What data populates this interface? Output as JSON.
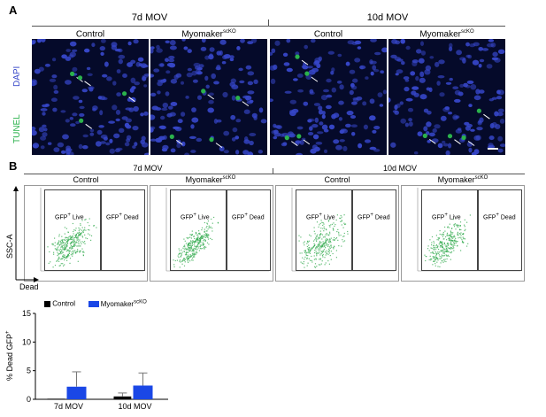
{
  "panel_a": {
    "letter": "A",
    "group_7d": "7d MOV",
    "group_10d": "10d MOV",
    "col_labels": [
      "Control",
      "Myomaker",
      "Control",
      "Myomaker"
    ],
    "col_sups": [
      "",
      "scKO",
      "",
      "scKO"
    ],
    "ylabel_tunel": "TUNEL",
    "ylabel_dapi": "DAPI",
    "colors": {
      "tunel": "#2bb24c",
      "dapi": "#3646c8",
      "background": "#050a2a"
    }
  },
  "panel_b": {
    "letter": "B",
    "group_7d": "7d MOV",
    "group_10d": "10d MOV",
    "col_labels": [
      "Control",
      "Myomaker",
      "Control",
      "Myomaker"
    ],
    "col_sups": [
      "",
      "scKO",
      "",
      "scKO"
    ],
    "gate_live": "GFP",
    "gate_live_sup": "+",
    "gate_live_suffix": " Live",
    "gate_dead": "GFP",
    "gate_dead_sup": "+",
    "gate_dead_suffix": " Dead",
    "axis_y": "SSC-A",
    "axis_x": "Dead",
    "dot_color": "#2ea84a"
  },
  "chart_data": {
    "type": "bar",
    "categories": [
      "7d MOV",
      "10d MOV"
    ],
    "series": [
      {
        "name": "Control",
        "sup": "",
        "color": "#000000",
        "values": [
          0.1,
          0.5
        ],
        "errors": [
          0.0,
          0.6
        ]
      },
      {
        "name": "Myomaker",
        "sup": "scKO",
        "color": "#1a47e6",
        "values": [
          2.2,
          2.4
        ],
        "errors": [
          2.6,
          2.2
        ]
      }
    ],
    "ylabel": "% Dead GFP",
    "ylabel_sup": "+",
    "ylim": [
      0,
      15
    ],
    "yticks": [
      0,
      5,
      10,
      15
    ],
    "legend_position": "top-left"
  }
}
